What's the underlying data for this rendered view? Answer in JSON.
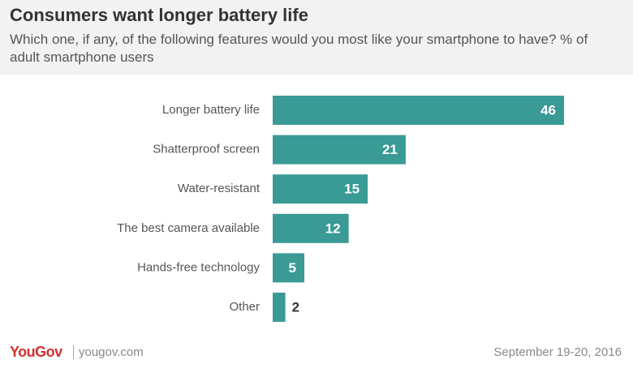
{
  "chart_data": {
    "type": "bar",
    "orientation": "horizontal",
    "title": "Consumers want longer battery life",
    "subtitle": "Which one, if any, of the following features would you most like your smartphone to have? % of adult smartphone users",
    "categories": [
      "Longer battery life",
      "Shatterproof screen",
      "Water-resistant",
      "The best camera available",
      "Hands-free technology",
      "Other"
    ],
    "values": [
      46,
      21,
      15,
      12,
      5,
      2
    ],
    "color": "#3a9a96",
    "grid": false
  },
  "footer": {
    "brand": "YouGov",
    "site": "yougov.com",
    "date": "September 19-20, 2016"
  }
}
